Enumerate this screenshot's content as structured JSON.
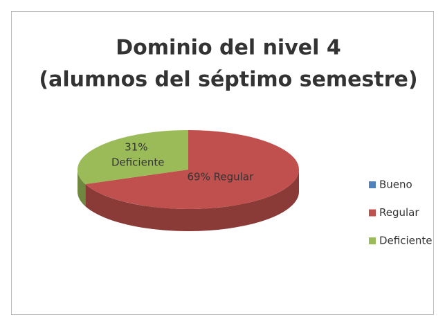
{
  "chart_data": {
    "type": "pie",
    "title": [
      "Dominio del nivel 4",
      "(alumnos del séptimo semestre)"
    ],
    "categories": [
      "Bueno",
      "Regular",
      "Deficiente"
    ],
    "values": [
      0,
      69,
      31
    ],
    "value_labels": [
      null,
      "69% Regular",
      "31% Deficiente"
    ],
    "colors": [
      "#4f81bd",
      "#c0504d",
      "#9bbb59"
    ],
    "legend": "right"
  }
}
